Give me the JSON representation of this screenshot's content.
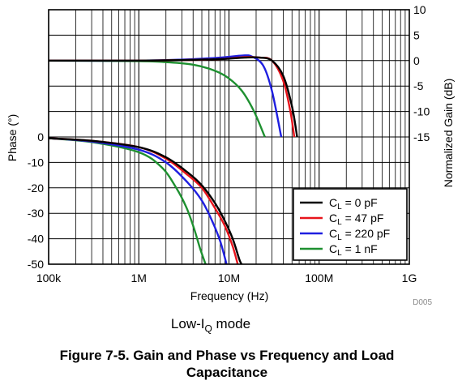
{
  "chart_data": {
    "type": "line",
    "x_axis": {
      "label": "Frequency (Hz)",
      "scale": "log",
      "range": [
        100000,
        1000000000
      ],
      "ticks": [
        {
          "value": 100000,
          "label": "100k"
        },
        {
          "value": 1000000,
          "label": "1M"
        },
        {
          "value": 10000000,
          "label": "10M"
        },
        {
          "value": 100000000,
          "label": "100M"
        },
        {
          "value": 1000000000,
          "label": "1G"
        }
      ]
    },
    "y_left": {
      "label": "Phase (°)",
      "range": [
        -50,
        0
      ],
      "ticks": [
        0,
        -10,
        -20,
        -30,
        -40,
        -50
      ]
    },
    "y_right": {
      "label": "Normalized Gain (dB)",
      "range": [
        -15,
        10
      ],
      "ticks": [
        10,
        5,
        0,
        -5,
        -10,
        -15
      ]
    },
    "grid": true,
    "legend_position": "bottom-right",
    "watermark": "D005",
    "series": [
      {
        "name": "CL = 0 pF",
        "legend_main": "C",
        "legend_sub": "L",
        "legend_rest": " = 0 pF",
        "color": "#000000",
        "gain": [
          [
            100000,
            0
          ],
          [
            1000000,
            0
          ],
          [
            3000000,
            0.1
          ],
          [
            8000000,
            0.3
          ],
          [
            15000000,
            0.6
          ],
          [
            22000000,
            0.6
          ],
          [
            30000000,
            0
          ],
          [
            40000000,
            -3
          ],
          [
            50000000,
            -9
          ],
          [
            57000000,
            -15
          ]
        ],
        "phase": [
          [
            100000,
            -0.5
          ],
          [
            300000,
            -1.5
          ],
          [
            1000000,
            -4
          ],
          [
            2000000,
            -8
          ],
          [
            3500000,
            -14
          ],
          [
            5000000,
            -19
          ],
          [
            7000000,
            -26
          ],
          [
            9000000,
            -33
          ],
          [
            11000000,
            -40
          ],
          [
            13000000,
            -48
          ],
          [
            13800000,
            -50
          ]
        ]
      },
      {
        "name": "CL = 47 pF",
        "legend_main": "C",
        "legend_sub": "L",
        "legend_rest": " = 47 pF",
        "color": "#e8141c",
        "gain": [
          [
            100000,
            0
          ],
          [
            1000000,
            0
          ],
          [
            3000000,
            0.1
          ],
          [
            8000000,
            0.3
          ],
          [
            15000000,
            0.7
          ],
          [
            22000000,
            0.6
          ],
          [
            30000000,
            0
          ],
          [
            40000000,
            -4
          ],
          [
            48000000,
            -10
          ],
          [
            53000000,
            -15
          ]
        ],
        "phase": [
          [
            100000,
            -0.5
          ],
          [
            300000,
            -1.5
          ],
          [
            1000000,
            -4
          ],
          [
            2000000,
            -8.5
          ],
          [
            3500000,
            -15
          ],
          [
            5000000,
            -20
          ],
          [
            7000000,
            -28
          ],
          [
            9000000,
            -35
          ],
          [
            11000000,
            -43
          ],
          [
            12500000,
            -50
          ]
        ]
      },
      {
        "name": "CL = 220 pF",
        "legend_main": "C",
        "legend_sub": "L",
        "legend_rest": " = 220 pF",
        "color": "#1f1fe0",
        "gain": [
          [
            100000,
            0
          ],
          [
            1000000,
            0
          ],
          [
            3000000,
            0.2
          ],
          [
            8000000,
            0.6
          ],
          [
            14000000,
            1.0
          ],
          [
            18000000,
            0.8
          ],
          [
            24000000,
            -1
          ],
          [
            30000000,
            -6
          ],
          [
            38000000,
            -15
          ]
        ],
        "phase": [
          [
            100000,
            -0.5
          ],
          [
            300000,
            -1.8
          ],
          [
            1000000,
            -5
          ],
          [
            2000000,
            -10
          ],
          [
            3500000,
            -18
          ],
          [
            5000000,
            -25
          ],
          [
            6500000,
            -33
          ],
          [
            8000000,
            -41
          ],
          [
            9400000,
            -50
          ]
        ]
      },
      {
        "name": "CL = 1 nF",
        "legend_main": "C",
        "legend_sub": "L",
        "legend_rest": " = 1 nF",
        "color": "#1e9030",
        "gain": [
          [
            100000,
            0
          ],
          [
            1000000,
            -0.1
          ],
          [
            2000000,
            -0.3
          ],
          [
            4000000,
            -0.8
          ],
          [
            7000000,
            -2
          ],
          [
            10000000,
            -3.5
          ],
          [
            14000000,
            -6
          ],
          [
            19000000,
            -10
          ],
          [
            25000000,
            -15
          ]
        ],
        "phase": [
          [
            100000,
            -0.5
          ],
          [
            300000,
            -2
          ],
          [
            1000000,
            -6
          ],
          [
            1800000,
            -12
          ],
          [
            2600000,
            -20
          ],
          [
            3400000,
            -28
          ],
          [
            4100000,
            -36
          ],
          [
            4800000,
            -44
          ],
          [
            5500000,
            -50
          ]
        ]
      }
    ]
  },
  "mode_label": {
    "main": "Low-I",
    "sub": "Q",
    "rest": " mode"
  },
  "caption": "Figure 7-5. Gain and Phase vs Frequency and Load Capacitance"
}
